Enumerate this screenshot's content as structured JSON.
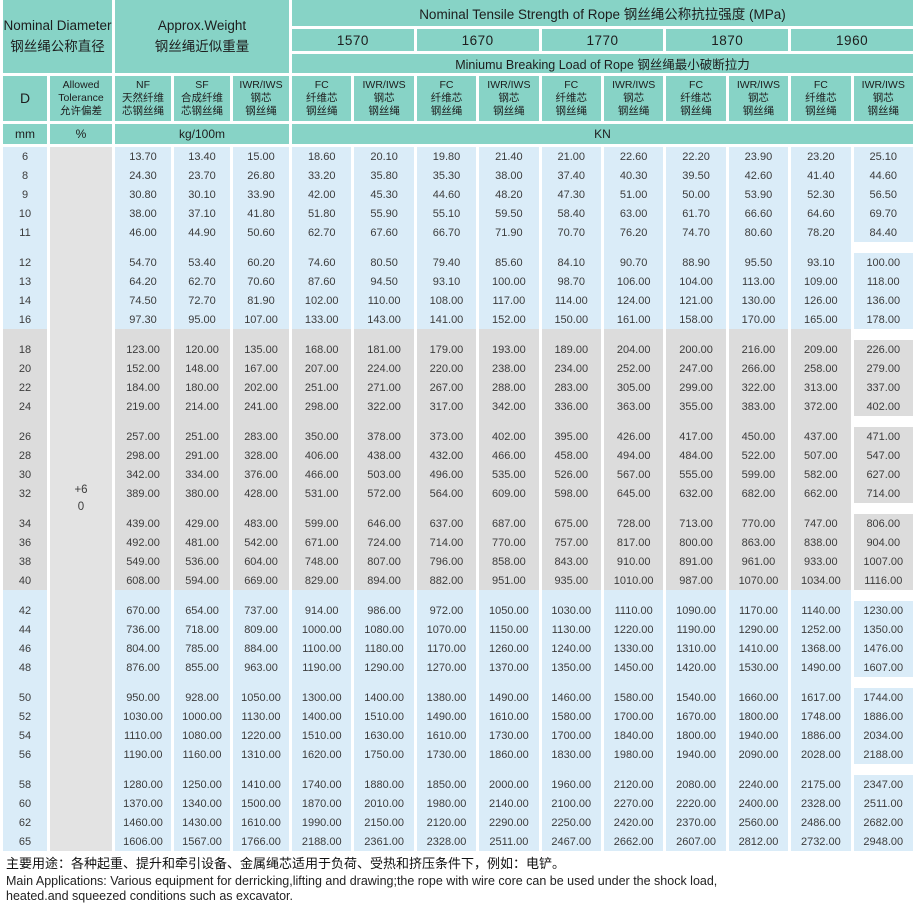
{
  "table": {
    "header": {
      "nominal_diameter": "Nominal Diameter\n钢丝绳公称直径",
      "approx_weight": "Approx.Weight\n钢丝绳近似重量",
      "tensile_title": "Nominal Tensile Strength of Rope 钢丝绳公称抗拉强度 (MPa)",
      "grades": [
        "1570",
        "1670",
        "1770",
        "1870",
        "1960"
      ],
      "breaking_title": "Miniumu Breaking Load of Rope  钢丝绳最小破断拉力",
      "col_d": "D",
      "col_tolerance": "Allowed\nTolerance\n允许偏差",
      "col_nf": "NF\n天然纤维\n芯钢丝绳",
      "col_sf": "SF\n合成纤维\n芯钢丝绳",
      "col_iwr": "IWR/IWS\n钢芯\n钢丝绳",
      "col_fc": "FC\n纤维芯\n钢丝绳",
      "unit_mm": "mm",
      "unit_pct": "%",
      "unit_kg": "kg/100m",
      "unit_kn": "KN"
    },
    "tolerance_value": "+6\n0",
    "column_order": [
      "D",
      "NF",
      "SF",
      "IWR/IWS",
      "1570 FC",
      "1570 IWR/IWS",
      "1670 FC",
      "1670 IWR/IWS",
      "1770 FC",
      "1770 IWR/IWS",
      "1870 FC",
      "1870 IWR/IWS",
      "1960 FC",
      "1960 IWR/IWS"
    ],
    "groups": [
      {
        "band": "blue",
        "rows": [
          [
            "6",
            "13.70",
            "13.40",
            "15.00",
            "18.60",
            "20.10",
            "19.80",
            "21.40",
            "21.00",
            "22.60",
            "22.20",
            "23.90",
            "23.20",
            "25.10"
          ],
          [
            "8",
            "24.30",
            "23.70",
            "26.80",
            "33.20",
            "35.80",
            "35.30",
            "38.00",
            "37.40",
            "40.30",
            "39.50",
            "42.60",
            "41.40",
            "44.60"
          ],
          [
            "9",
            "30.80",
            "30.10",
            "33.90",
            "42.00",
            "45.30",
            "44.60",
            "48.20",
            "47.30",
            "51.00",
            "50.00",
            "53.90",
            "52.30",
            "56.50"
          ],
          [
            "10",
            "38.00",
            "37.10",
            "41.80",
            "51.80",
            "55.90",
            "55.10",
            "59.50",
            "58.40",
            "63.00",
            "61.70",
            "66.60",
            "64.60",
            "69.70"
          ],
          [
            "11",
            "46.00",
            "44.90",
            "50.60",
            "62.70",
            "67.60",
            "66.70",
            "71.90",
            "70.70",
            "76.20",
            "74.70",
            "80.60",
            "78.20",
            "84.40"
          ]
        ]
      },
      {
        "band": "blue",
        "rows": [
          [
            "12",
            "54.70",
            "53.40",
            "60.20",
            "74.60",
            "80.50",
            "79.40",
            "85.60",
            "84.10",
            "90.70",
            "88.90",
            "95.50",
            "93.10",
            "100.00"
          ],
          [
            "13",
            "64.20",
            "62.70",
            "70.60",
            "87.60",
            "94.50",
            "93.10",
            "100.00",
            "98.70",
            "106.00",
            "104.00",
            "113.00",
            "109.00",
            "118.00"
          ],
          [
            "14",
            "74.50",
            "72.70",
            "81.90",
            "102.00",
            "110.00",
            "108.00",
            "117.00",
            "114.00",
            "124.00",
            "121.00",
            "130.00",
            "126.00",
            "136.00"
          ],
          [
            "16",
            "97.30",
            "95.00",
            "107.00",
            "133.00",
            "143.00",
            "141.00",
            "152.00",
            "150.00",
            "161.00",
            "158.00",
            "170.00",
            "165.00",
            "178.00"
          ]
        ]
      },
      {
        "band": "gray",
        "rows": [
          [
            "18",
            "123.00",
            "120.00",
            "135.00",
            "168.00",
            "181.00",
            "179.00",
            "193.00",
            "189.00",
            "204.00",
            "200.00",
            "216.00",
            "209.00",
            "226.00"
          ],
          [
            "20",
            "152.00",
            "148.00",
            "167.00",
            "207.00",
            "224.00",
            "220.00",
            "238.00",
            "234.00",
            "252.00",
            "247.00",
            "266.00",
            "258.00",
            "279.00"
          ],
          [
            "22",
            "184.00",
            "180.00",
            "202.00",
            "251.00",
            "271.00",
            "267.00",
            "288.00",
            "283.00",
            "305.00",
            "299.00",
            "322.00",
            "313.00",
            "337.00"
          ],
          [
            "24",
            "219.00",
            "214.00",
            "241.00",
            "298.00",
            "322.00",
            "317.00",
            "342.00",
            "336.00",
            "363.00",
            "355.00",
            "383.00",
            "372.00",
            "402.00"
          ]
        ]
      },
      {
        "band": "gray",
        "rows": [
          [
            "26",
            "257.00",
            "251.00",
            "283.00",
            "350.00",
            "378.00",
            "373.00",
            "402.00",
            "395.00",
            "426.00",
            "417.00",
            "450.00",
            "437.00",
            "471.00"
          ],
          [
            "28",
            "298.00",
            "291.00",
            "328.00",
            "406.00",
            "438.00",
            "432.00",
            "466.00",
            "458.00",
            "494.00",
            "484.00",
            "522.00",
            "507.00",
            "547.00"
          ],
          [
            "30",
            "342.00",
            "334.00",
            "376.00",
            "466.00",
            "503.00",
            "496.00",
            "535.00",
            "526.00",
            "567.00",
            "555.00",
            "599.00",
            "582.00",
            "627.00"
          ],
          [
            "32",
            "389.00",
            "380.00",
            "428.00",
            "531.00",
            "572.00",
            "564.00",
            "609.00",
            "598.00",
            "645.00",
            "632.00",
            "682.00",
            "662.00",
            "714.00"
          ]
        ]
      },
      {
        "band": "gray",
        "rows": [
          [
            "34",
            "439.00",
            "429.00",
            "483.00",
            "599.00",
            "646.00",
            "637.00",
            "687.00",
            "675.00",
            "728.00",
            "713.00",
            "770.00",
            "747.00",
            "806.00"
          ],
          [
            "36",
            "492.00",
            "481.00",
            "542.00",
            "671.00",
            "724.00",
            "714.00",
            "770.00",
            "757.00",
            "817.00",
            "800.00",
            "863.00",
            "838.00",
            "904.00"
          ],
          [
            "38",
            "549.00",
            "536.00",
            "604.00",
            "748.00",
            "807.00",
            "796.00",
            "858.00",
            "843.00",
            "910.00",
            "891.00",
            "961.00",
            "933.00",
            "1007.00"
          ],
          [
            "40",
            "608.00",
            "594.00",
            "669.00",
            "829.00",
            "894.00",
            "882.00",
            "951.00",
            "935.00",
            "1010.00",
            "987.00",
            "1070.00",
            "1034.00",
            "1116.00"
          ]
        ]
      },
      {
        "band": "blue",
        "rows": [
          [
            "42",
            "670.00",
            "654.00",
            "737.00",
            "914.00",
            "986.00",
            "972.00",
            "1050.00",
            "1030.00",
            "1110.00",
            "1090.00",
            "1170.00",
            "1140.00",
            "1230.00"
          ],
          [
            "44",
            "736.00",
            "718.00",
            "809.00",
            "1000.00",
            "1080.00",
            "1070.00",
            "1150.00",
            "1130.00",
            "1220.00",
            "1190.00",
            "1290.00",
            "1252.00",
            "1350.00"
          ],
          [
            "46",
            "804.00",
            "785.00",
            "884.00",
            "1100.00",
            "1180.00",
            "1170.00",
            "1260.00",
            "1240.00",
            "1330.00",
            "1310.00",
            "1410.00",
            "1368.00",
            "1476.00"
          ],
          [
            "48",
            "876.00",
            "855.00",
            "963.00",
            "1190.00",
            "1290.00",
            "1270.00",
            "1370.00",
            "1350.00",
            "1450.00",
            "1420.00",
            "1530.00",
            "1490.00",
            "1607.00"
          ]
        ]
      },
      {
        "band": "blue",
        "rows": [
          [
            "50",
            "950.00",
            "928.00",
            "1050.00",
            "1300.00",
            "1400.00",
            "1380.00",
            "1490.00",
            "1460.00",
            "1580.00",
            "1540.00",
            "1660.00",
            "1617.00",
            "1744.00"
          ],
          [
            "52",
            "1030.00",
            "1000.00",
            "1130.00",
            "1400.00",
            "1510.00",
            "1490.00",
            "1610.00",
            "1580.00",
            "1700.00",
            "1670.00",
            "1800.00",
            "1748.00",
            "1886.00"
          ],
          [
            "54",
            "1110.00",
            "1080.00",
            "1220.00",
            "1510.00",
            "1630.00",
            "1610.00",
            "1730.00",
            "1700.00",
            "1840.00",
            "1800.00",
            "1940.00",
            "1886.00",
            "2034.00"
          ],
          [
            "56",
            "1190.00",
            "1160.00",
            "1310.00",
            "1620.00",
            "1750.00",
            "1730.00",
            "1860.00",
            "1830.00",
            "1980.00",
            "1940.00",
            "2090.00",
            "2028.00",
            "2188.00"
          ]
        ]
      },
      {
        "band": "blue",
        "rows": [
          [
            "58",
            "1280.00",
            "1250.00",
            "1410.00",
            "1740.00",
            "1880.00",
            "1850.00",
            "2000.00",
            "1960.00",
            "2120.00",
            "2080.00",
            "2240.00",
            "2175.00",
            "2347.00"
          ],
          [
            "60",
            "1370.00",
            "1340.00",
            "1500.00",
            "1870.00",
            "2010.00",
            "1980.00",
            "2140.00",
            "2100.00",
            "2270.00",
            "2220.00",
            "2400.00",
            "2328.00",
            "2511.00"
          ],
          [
            "62",
            "1460.00",
            "1430.00",
            "1610.00",
            "1990.00",
            "2150.00",
            "2120.00",
            "2290.00",
            "2250.00",
            "2420.00",
            "2370.00",
            "2560.00",
            "2486.00",
            "2682.00"
          ],
          [
            "65",
            "1606.00",
            "1567.00",
            "1766.00",
            "2188.00",
            "2361.00",
            "2328.00",
            "2511.00",
            "2467.00",
            "2662.00",
            "2607.00",
            "2812.00",
            "2732.00",
            "2948.00"
          ]
        ]
      }
    ]
  },
  "footer": {
    "zh": "主要用途：各种起重、提升和牵引设备、金属绳芯适用于负荷、受热和挤压条件下，例如：电铲。",
    "en_line1": "Main Applications: Various equipment for derricking,lifting and drawing;the rope with wire core can be used under the shock load,",
    "en_line2": "heated.and squeezed conditions such as excavator."
  },
  "colors": {
    "header_teal": "#87d3c6",
    "band_blue": "#daecf8",
    "band_gray": "#dcdcdc",
    "tolerance_gray": "#e3e3e3"
  }
}
